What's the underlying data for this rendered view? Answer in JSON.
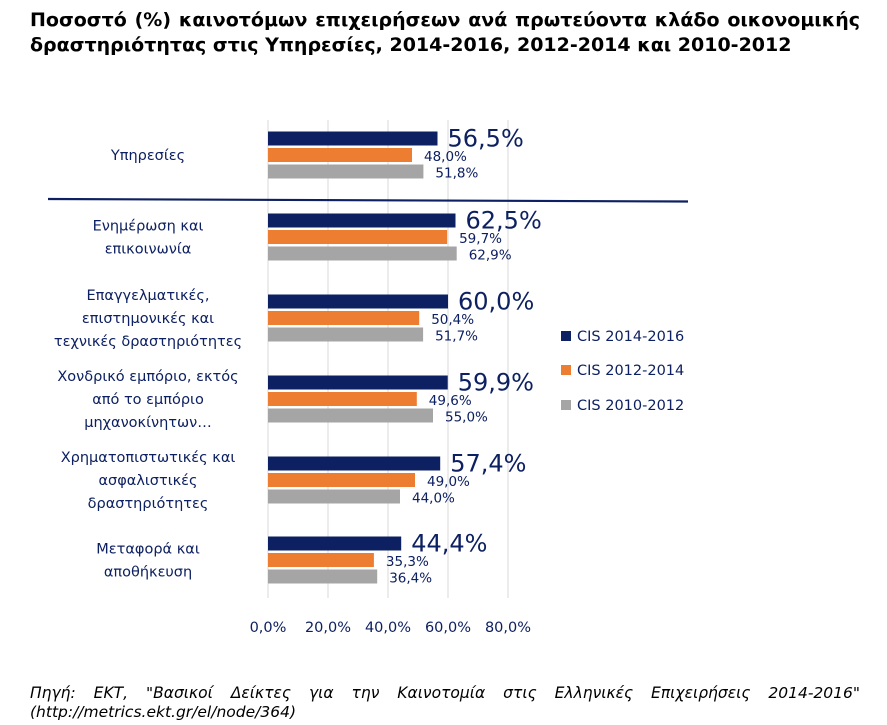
{
  "title": "Ποσοστό (%) καινοτόμων επιχειρήσεων ανά πρωτεύοντα κλάδο οικονομικής δραστηριότητας στις Υπηρεσίες, 2014-2016, 2012-2014 και 2010-2012",
  "source": "Πηγή: ΕΚΤ, \"Βασικοί Δείκτες για την Καινοτομία στις Ελληνικές Επιχειρήσεις 2014-2016\" (http://metrics.ekt.gr/el/node/364)",
  "chart_data": {
    "type": "bar",
    "orientation": "horizontal",
    "categories": [
      [
        "Υπηρεσίες"
      ],
      [
        "Ενημέρωση και",
        "επικοινωνία"
      ],
      [
        "Επαγγελματικές,",
        "επιστημονικές και",
        "τεχνικές δραστηριότητες"
      ],
      [
        "Χονδρικό εμπόριο, εκτός",
        "από το εμπόριο",
        "μηχανοκίνητων…"
      ],
      [
        "Χρηματοπιστωτικές και",
        "ασφαλιστικές",
        "δραστηριότητες"
      ],
      [
        "Μεταφορά και",
        "αποθήκευση"
      ]
    ],
    "series": [
      {
        "name": "CIS 2014-2016",
        "color": "#0d2061",
        "values": [
          56.5,
          62.5,
          60.0,
          59.9,
          57.4,
          44.4
        ],
        "labels": [
          "56,5%",
          "62,5%",
          "60,0%",
          "59,9%",
          "57,4%",
          "44,4%"
        ]
      },
      {
        "name": "CIS 2012-2014",
        "color": "#ed7d31",
        "values": [
          48.0,
          59.7,
          50.4,
          49.6,
          49.0,
          35.3
        ],
        "labels": [
          "48,0%",
          "59,7%",
          "50,4%",
          "49,6%",
          "49,0%",
          "35,3%"
        ]
      },
      {
        "name": "CIS 2010-2012",
        "color": "#a5a5a5",
        "values": [
          51.8,
          62.9,
          51.7,
          55.0,
          44.0,
          36.4
        ],
        "labels": [
          "51,8%",
          "62,9%",
          "51,7%",
          "55,0%",
          "44,0%",
          "36,4%"
        ]
      }
    ],
    "xlim": [
      0,
      80
    ],
    "xticks": [
      0,
      20,
      40,
      60,
      80
    ],
    "xtick_labels": [
      "0,0%",
      "20,0%",
      "40,0%",
      "60,0%",
      "80,0%"
    ],
    "grid": "vertical",
    "legend": "right",
    "separator_after_first_category": true,
    "colors": {
      "axis_text": "#0d2061",
      "grid": "#d9d9d9",
      "separator": "#0d2061"
    }
  }
}
